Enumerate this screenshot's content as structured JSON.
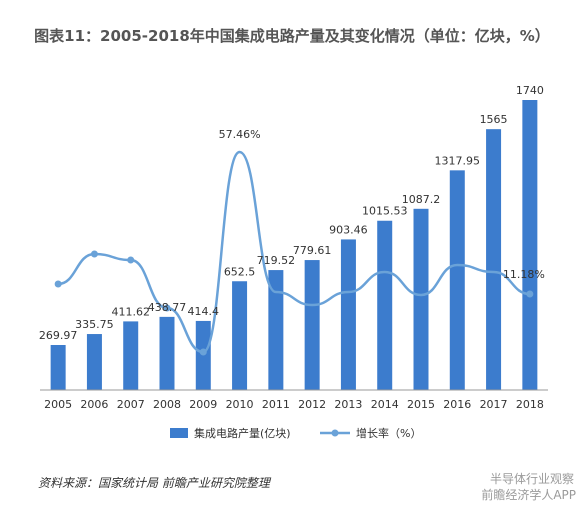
{
  "title": "图表11：2005-2018年中国集成电路产量及其变化情况（单位：亿块，%）",
  "source_text": "资料来源：国家统计局 前瞻产业研究院整理",
  "watermark_bottom_1": "半导体行业观察",
  "watermark_bottom_2": "前瞻经济学人APP",
  "colors": {
    "bar": "#3c7ccd",
    "line": "#6aa2d8",
    "label": "#333333",
    "axis": "#999999"
  },
  "chart_data": {
    "type": "bar",
    "categories": [
      "2005",
      "2006",
      "2007",
      "2008",
      "2009",
      "2010",
      "2011",
      "2012",
      "2013",
      "2014",
      "2015",
      "2016",
      "2017",
      "2018"
    ],
    "series": [
      {
        "name": "集成电路产量(亿块)",
        "type": "bar",
        "values": [
          269.97,
          335.75,
          411.62,
          438.77,
          414.4,
          652.5,
          719.52,
          779.61,
          903.46,
          1015.53,
          1087.2,
          1317.95,
          1565,
          1740
        ]
      },
      {
        "name": "增长率（%）",
        "type": "line",
        "values": [
          null,
          null,
          null,
          null,
          null,
          57.46,
          null,
          null,
          null,
          null,
          null,
          null,
          null,
          11.18
        ],
        "labels_shown": {
          "2010": "57.46%",
          "2018": "11.18%"
        }
      }
    ],
    "bar_labels": [
      "269.97",
      "335.75",
      "411.62",
      "438.77",
      "414.4",
      "652.5",
      "719.52",
      "779.61",
      "903.46",
      "1015.53",
      "1087.2",
      "1317.95",
      "1565",
      "1740"
    ],
    "ylim": [
      0,
      1800
    ],
    "grid": false,
    "legend_position": "bottom"
  }
}
